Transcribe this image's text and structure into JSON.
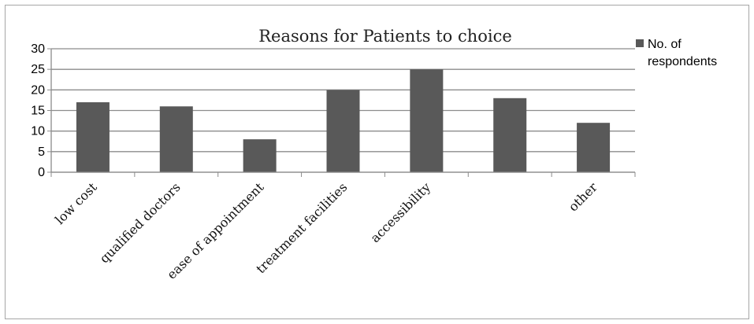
{
  "chart_data": {
    "type": "bar",
    "title": "Reasons for Patients to choice",
    "categories": [
      "low cost",
      "qualified doctors",
      "ease of appointment",
      "treatment facilities",
      "accessibility",
      "",
      "other"
    ],
    "series": [
      {
        "name": "No. of respondents",
        "values": [
          17,
          16,
          8,
          20,
          25,
          18,
          12
        ]
      }
    ],
    "ylim": [
      0,
      30
    ],
    "yticks": [
      0,
      5,
      10,
      15,
      20,
      25,
      30
    ],
    "xlabel": "",
    "ylabel": "",
    "grid": true,
    "legend": "right",
    "legend_lines": [
      "No. of",
      "respondents"
    ],
    "colors": {
      "bar": "#595959",
      "grid": "#8c8c8c",
      "axis": "#8c8c8c"
    }
  }
}
